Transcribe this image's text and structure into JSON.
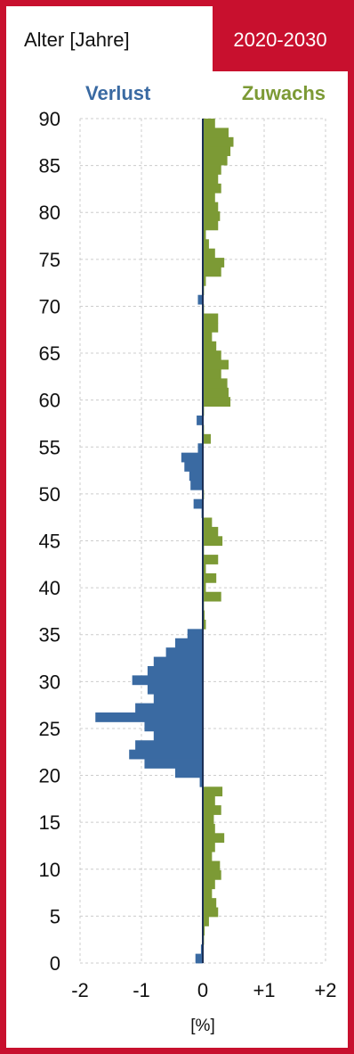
{
  "header": {
    "y_axis_title": "Alter [Jahre]",
    "period": "2020-2030"
  },
  "colors": {
    "frame": "#c8102e",
    "loss": "#3a6aa2",
    "gain": "#7c9a35",
    "grid": "#cccccc",
    "axis": "#1b2f55",
    "text": "#111111"
  },
  "chart_data": {
    "type": "bar",
    "orientation": "horizontal",
    "left_label": "Verlust",
    "right_label": "Zuwachs",
    "xlabel": "[%]",
    "x_ticks": [
      {
        "value": -2,
        "label": "-2"
      },
      {
        "value": -1,
        "label": "-1"
      },
      {
        "value": 0,
        "label": "0"
      },
      {
        "value": 1,
        "label": "+1"
      },
      {
        "value": 2,
        "label": "+2"
      }
    ],
    "y_ticks": [
      0,
      5,
      10,
      15,
      20,
      25,
      30,
      35,
      40,
      45,
      50,
      55,
      60,
      65,
      70,
      75,
      80,
      85,
      90
    ],
    "xlim": [
      -2,
      2
    ],
    "ylim": [
      0,
      90
    ],
    "grid": true,
    "categories": [
      0,
      1,
      2,
      3,
      4,
      5,
      6,
      7,
      8,
      9,
      10,
      11,
      12,
      13,
      14,
      15,
      16,
      17,
      18,
      19,
      20,
      21,
      22,
      23,
      24,
      25,
      26,
      27,
      28,
      29,
      30,
      31,
      32,
      33,
      34,
      35,
      36,
      37,
      38,
      39,
      40,
      41,
      42,
      43,
      44,
      45,
      46,
      47,
      48,
      49,
      50,
      51,
      52,
      53,
      54,
      55,
      56,
      57,
      58,
      59,
      60,
      61,
      62,
      63,
      64,
      65,
      66,
      67,
      68,
      69,
      70,
      71,
      72,
      73,
      74,
      75,
      76,
      77,
      78,
      79,
      80,
      81,
      82,
      83,
      84,
      85,
      86,
      87,
      88,
      89,
      90
    ],
    "values": [
      -0.12,
      -0.03,
      0.02,
      0.03,
      0.1,
      0.25,
      0.22,
      0.15,
      0.2,
      0.3,
      0.28,
      0.15,
      0.2,
      0.35,
      0.2,
      0.18,
      0.3,
      0.2,
      0.32,
      -0.05,
      -0.45,
      -0.95,
      -1.2,
      -1.1,
      -0.8,
      -0.95,
      -1.75,
      -1.1,
      -0.8,
      -0.9,
      -1.15,
      -0.9,
      -0.8,
      -0.6,
      -0.45,
      -0.25,
      0.05,
      0.03,
      0.02,
      0.3,
      0.05,
      0.22,
      0.05,
      0.25,
      0.02,
      0.32,
      0.25,
      0.15,
      -0.02,
      -0.15,
      0.02,
      -0.2,
      -0.22,
      -0.3,
      -0.35,
      -0.08,
      0.13,
      0.02,
      -0.1,
      0.02,
      0.45,
      0.42,
      0.4,
      0.3,
      0.42,
      0.3,
      0.22,
      0.15,
      0.25,
      0.25,
      0.02,
      -0.08,
      0.02,
      0.05,
      0.3,
      0.35,
      0.2,
      0.1,
      0.05,
      0.25,
      0.28,
      0.25,
      0.2,
      0.3,
      0.25,
      0.3,
      0.4,
      0.45,
      0.5,
      0.42,
      0.2
    ]
  }
}
